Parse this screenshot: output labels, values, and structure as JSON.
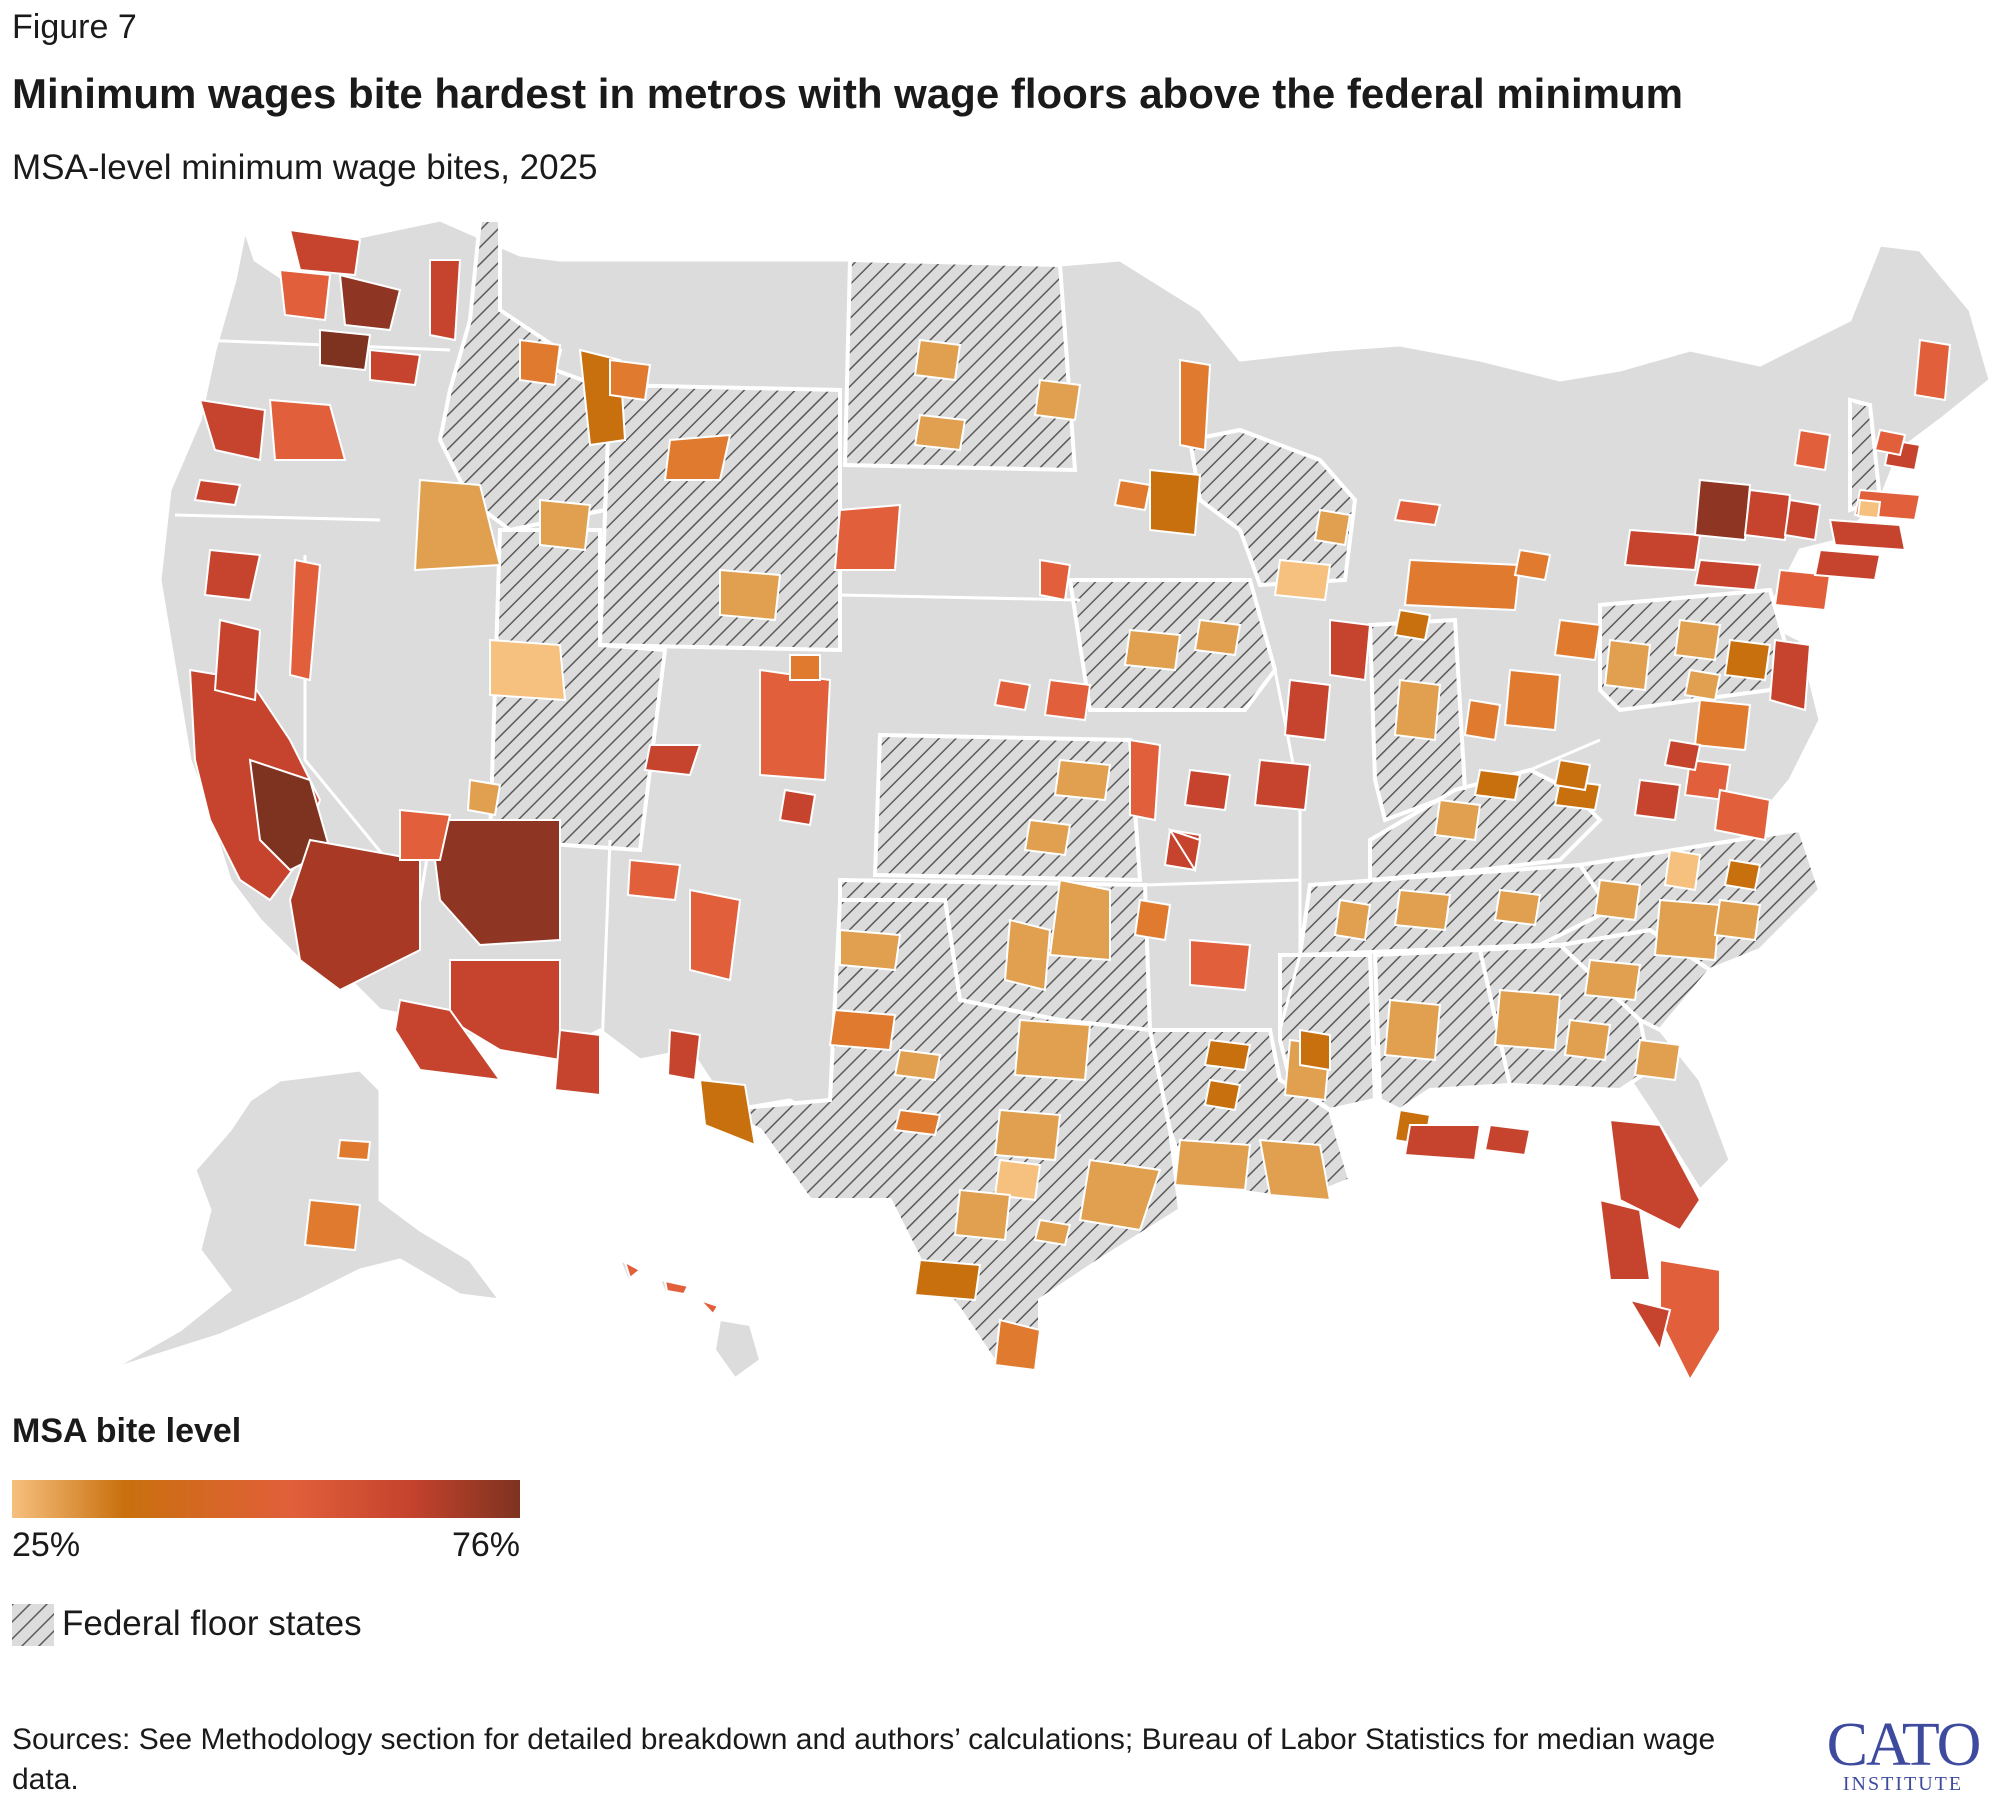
{
  "header": {
    "figure_label": "Figure 7",
    "title": "Minimum wages bite hardest in metros with wage floors above the federal minimum",
    "subtitle": "MSA-level minimum wage bites, 2025"
  },
  "legend": {
    "title": "MSA bite level",
    "min_label": "25%",
    "max_label": "76%",
    "min_value": 25,
    "max_value": 76,
    "colors": [
      "#f6c07e",
      "#c9700e",
      "#e15f3a",
      "#c6432d",
      "#7e3320"
    ],
    "hatch_label": "Federal floor states"
  },
  "map": {
    "land_color": "#dcdcdc",
    "border_color": "#ffffff",
    "hatch_color": "#5a5a5a",
    "federal_floor_states": [
      "Idaho",
      "Wyoming",
      "Utah",
      "North Dakota",
      "Kansas",
      "Oklahoma",
      "Texas",
      "Iowa",
      "Wisconsin",
      "Indiana",
      "Kentucky",
      "Tennessee",
      "Mississippi",
      "Alabama",
      "Georgia",
      "South Carolina",
      "North Carolina",
      "Louisiana",
      "Pennsylvania",
      "New Hampshire"
    ]
  },
  "footer": {
    "sources": "Sources: See Methodology section for detailed breakdown and authors’ calculations; Bureau of Labor Statistics for median wage data.",
    "logo_main": "CATO",
    "logo_sub": "INSTITUTE"
  }
}
